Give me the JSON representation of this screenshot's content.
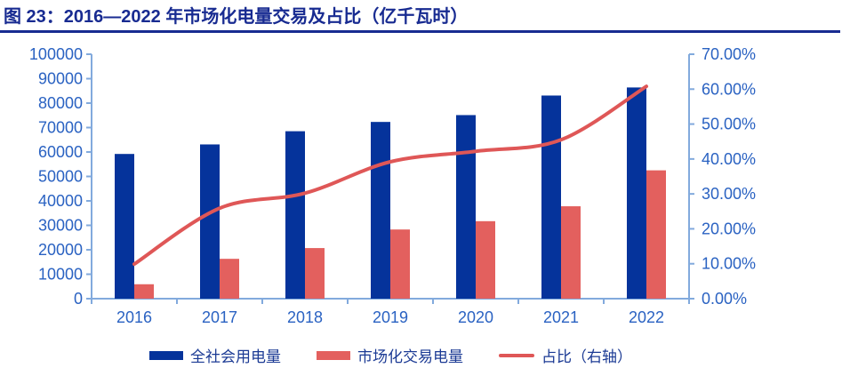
{
  "title": "图 23：2016—2022 年市场化电量交易及占比（亿千瓦时）",
  "colors": {
    "title": "#182B91",
    "underline": "#182B91",
    "axis_label": "#2A62C2",
    "axis_line": "#82AADD",
    "bar_primary": "#05339B",
    "bar_secondary": "#E3605E",
    "line": "#DF5757",
    "legend_text": "#1B3A94"
  },
  "chart_data": {
    "type": "bar",
    "subtype": "bar+line combo, dual axis",
    "title": "图 23：2016—2022 年市场化电量交易及占比（亿千瓦时）",
    "categories": [
      "2016",
      "2017",
      "2018",
      "2019",
      "2020",
      "2021",
      "2022"
    ],
    "series": [
      {
        "name": "全社会用电量",
        "type": "bar",
        "axis": "left",
        "color": "#05339B",
        "values": [
          59200,
          63100,
          68500,
          72300,
          75100,
          83100,
          86400
        ]
      },
      {
        "name": "市场化交易电量",
        "type": "bar",
        "axis": "left",
        "color": "#E3605E",
        "values": [
          5900,
          16300,
          20700,
          28300,
          31700,
          37800,
          52500
        ]
      },
      {
        "name": "占比（右轴）",
        "type": "line",
        "axis": "right",
        "color": "#DF5757",
        "values": [
          9.9,
          25.9,
          30.2,
          39.2,
          42.2,
          45.5,
          60.8
        ]
      }
    ],
    "left_axis": {
      "min": 0,
      "max": 100000,
      "step": 10000,
      "tick_labels": [
        "0",
        "10000",
        "20000",
        "30000",
        "40000",
        "50000",
        "60000",
        "70000",
        "80000",
        "90000",
        "100000"
      ]
    },
    "right_axis": {
      "min": 0,
      "max": 70,
      "step": 10,
      "tick_labels": [
        "0.00%",
        "10.00%",
        "20.00%",
        "30.00%",
        "40.00%",
        "50.00%",
        "60.00%",
        "70.00%"
      ]
    },
    "xlabel": "",
    "ylabel": "",
    "grid": false,
    "legend_position": "bottom",
    "legend": [
      {
        "label": "全社会用电量",
        "swatch": "bar",
        "color": "#05339B"
      },
      {
        "label": "市场化交易电量",
        "swatch": "bar",
        "color": "#E3605E"
      },
      {
        "label": "占比（右轴）",
        "swatch": "line",
        "color": "#DF5757"
      }
    ]
  }
}
